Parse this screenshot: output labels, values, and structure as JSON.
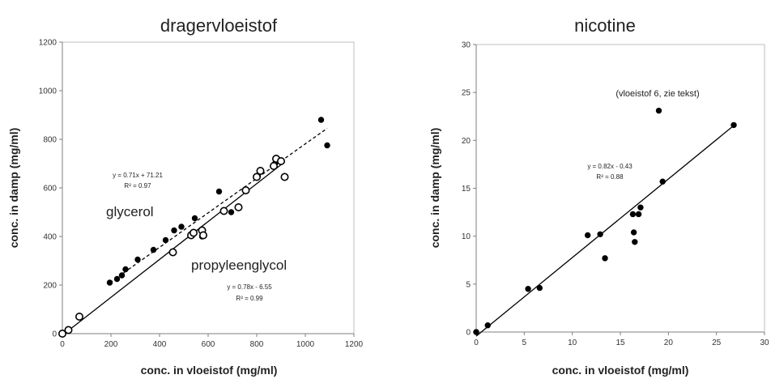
{
  "chart_data": [
    {
      "type": "scatter",
      "title": "dragervloeistof",
      "xlabel": "conc. in vloeistof (mg/ml)",
      "ylabel": "conc. in damp (mg/ml)",
      "xlim": [
        0,
        1200
      ],
      "ylim": [
        0,
        1200
      ],
      "xticks": [
        0,
        200,
        400,
        600,
        800,
        1000,
        1200
      ],
      "yticks": [
        0,
        200,
        400,
        600,
        800,
        1000,
        1200
      ],
      "grid": false,
      "series": [
        {
          "name": "glycerol",
          "marker": "filled-circle",
          "color": "#000000",
          "x": [
            195,
            225,
            245,
            260,
            310,
            375,
            425,
            460,
            490,
            535,
            545,
            575,
            645,
            695,
            805,
            875,
            1065,
            1090
          ],
          "y": [
            210,
            225,
            240,
            265,
            305,
            345,
            385,
            425,
            440,
            415,
            475,
            400,
            585,
            500,
            650,
            700,
            880,
            775
          ],
          "trendline": {
            "slope": 0.71,
            "intercept": 71.21,
            "style": "dashed",
            "x_range": [
              195,
              1090
            ]
          },
          "equation": "y = 0.71x + 71.21",
          "r2": "R² = 0.97"
        },
        {
          "name": "propyleenglycol",
          "marker": "open-circle",
          "color": "#000000",
          "x": [
            0,
            25,
            70,
            455,
            530,
            540,
            575,
            580,
            665,
            725,
            755,
            800,
            815,
            870,
            880,
            900,
            915
          ],
          "y": [
            0,
            15,
            70,
            335,
            405,
            415,
            425,
            405,
            505,
            520,
            590,
            645,
            670,
            690,
            720,
            710,
            645
          ],
          "trendline": {
            "slope": 0.78,
            "intercept": -6.55,
            "style": "solid",
            "x_range": [
              0,
              915
            ]
          },
          "equation": "y = 0.78x - 6.55",
          "r2": "R² = 0.99"
        }
      ]
    },
    {
      "type": "scatter",
      "title": "nicotine",
      "xlabel": "conc. in vloeistof (mg/ml)",
      "ylabel": "conc. in damp (mg/ml)",
      "xlim": [
        0,
        30
      ],
      "ylim": [
        0,
        30
      ],
      "xticks": [
        0,
        5,
        10,
        15,
        20,
        25,
        30
      ],
      "yticks": [
        0,
        5,
        10,
        15,
        20,
        25,
        30
      ],
      "grid": false,
      "series": [
        {
          "marker": "filled-circle",
          "color": "#000000",
          "x": [
            0,
            1.2,
            5.4,
            6.6,
            11.6,
            12.9,
            13.4,
            16.3,
            16.4,
            16.5,
            16.9,
            17.1,
            19.0,
            19.4,
            26.8
          ],
          "y": [
            0,
            0.7,
            4.5,
            4.6,
            10.1,
            10.2,
            7.7,
            12.3,
            10.4,
            9.4,
            12.3,
            13.0,
            23.1,
            15.7,
            21.6
          ],
          "trendline": {
            "slope": 0.82,
            "intercept": -0.43,
            "style": "solid",
            "x_range": [
              0,
              26.8
            ]
          },
          "equation": "y = 0.82x - 0.43",
          "r2": "R² = 0.88"
        }
      ],
      "annotation": "(vloeistof 6, zie tekst)"
    }
  ]
}
